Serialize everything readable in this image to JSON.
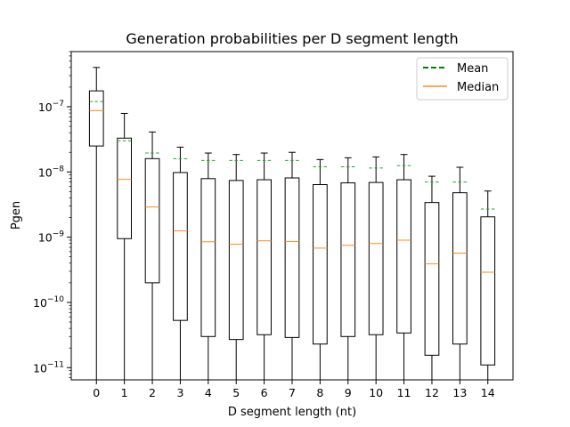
{
  "chart_data": {
    "type": "box",
    "title": "Generation probabilities per D segment length",
    "xlabel": "D segment length (nt)",
    "ylabel": "Pgen",
    "yscale": "log",
    "ylim": [
      6.5e-12,
      7e-07
    ],
    "categories": [
      "0",
      "1",
      "2",
      "3",
      "4",
      "5",
      "6",
      "7",
      "8",
      "9",
      "10",
      "11",
      "12",
      "13",
      "14"
    ],
    "y_ticks": [
      {
        "value": 1e-11,
        "base": "10",
        "exp": "−11"
      },
      {
        "value": 1e-10,
        "base": "10",
        "exp": "−10"
      },
      {
        "value": 1e-09,
        "base": "10",
        "exp": "−9"
      },
      {
        "value": 1e-08,
        "base": "10",
        "exp": "−8"
      },
      {
        "value": 1e-07,
        "base": "10",
        "exp": "−7"
      }
    ],
    "boxes": [
      {
        "x": "0",
        "whisker_low": 6.5e-12,
        "q1": 2.5e-08,
        "median": 8.7e-08,
        "q3": 1.75e-07,
        "whisker_high": 4e-07,
        "mean": 1.2e-07
      },
      {
        "x": "1",
        "whisker_low": 6.5e-12,
        "q1": 9.5e-10,
        "median": 7.7e-09,
        "q3": 3.3e-08,
        "whisker_high": 7.9e-08,
        "mean": 3e-08
      },
      {
        "x": "2",
        "whisker_low": 6.5e-12,
        "q1": 2e-10,
        "median": 2.9e-09,
        "q3": 1.6e-08,
        "whisker_high": 4.1e-08,
        "mean": 1.95e-08
      },
      {
        "x": "3",
        "whisker_low": 6.5e-12,
        "q1": 5.3e-11,
        "median": 1.25e-09,
        "q3": 9.8e-09,
        "whisker_high": 2.4e-08,
        "mean": 1.6e-08
      },
      {
        "x": "4",
        "whisker_low": 6.5e-12,
        "q1": 3e-11,
        "median": 8.5e-10,
        "q3": 7.9e-09,
        "whisker_high": 1.95e-08,
        "mean": 1.5e-08
      },
      {
        "x": "5",
        "whisker_low": 6.5e-12,
        "q1": 2.7e-11,
        "median": 7.8e-10,
        "q3": 7.4e-09,
        "whisker_high": 1.85e-08,
        "mean": 1.5e-08
      },
      {
        "x": "6",
        "whisker_low": 6.5e-12,
        "q1": 3.2e-11,
        "median": 8.8e-10,
        "q3": 7.6e-09,
        "whisker_high": 1.95e-08,
        "mean": 1.5e-08
      },
      {
        "x": "7",
        "whisker_low": 6.5e-12,
        "q1": 2.9e-11,
        "median": 8.6e-10,
        "q3": 8.1e-09,
        "whisker_high": 2e-08,
        "mean": 1.5e-08
      },
      {
        "x": "8",
        "whisker_low": 6.5e-12,
        "q1": 2.3e-11,
        "median": 6.8e-10,
        "q3": 6.4e-09,
        "whisker_high": 1.55e-08,
        "mean": 1.2e-08
      },
      {
        "x": "9",
        "whisker_low": 6.5e-12,
        "q1": 3e-11,
        "median": 7.5e-10,
        "q3": 6.8e-09,
        "whisker_high": 1.65e-08,
        "mean": 1.2e-08
      },
      {
        "x": "10",
        "whisker_low": 6.5e-12,
        "q1": 3.2e-11,
        "median": 8e-10,
        "q3": 6.9e-09,
        "whisker_high": 1.7e-08,
        "mean": 1.15e-08
      },
      {
        "x": "11",
        "whisker_low": 6.5e-12,
        "q1": 3.4e-11,
        "median": 9e-10,
        "q3": 7.6e-09,
        "whisker_high": 1.85e-08,
        "mean": 1.25e-08
      },
      {
        "x": "12",
        "whisker_low": 6.5e-12,
        "q1": 1.55e-11,
        "median": 3.9e-10,
        "q3": 3.4e-09,
        "whisker_high": 8.6e-09,
        "mean": 7e-09
      },
      {
        "x": "13",
        "whisker_low": 6.5e-12,
        "q1": 2.3e-11,
        "median": 5.7e-10,
        "q3": 4.8e-09,
        "whisker_high": 1.18e-08,
        "mean": 7e-09
      },
      {
        "x": "14",
        "whisker_low": 6.5e-12,
        "q1": 1.1e-11,
        "median": 2.9e-10,
        "q3": 2.05e-09,
        "whisker_high": 5.1e-09,
        "mean": 2.7e-09
      }
    ],
    "legend": {
      "position": "top-right",
      "entries": [
        {
          "label": "Mean",
          "style": "dashed",
          "color": "#008000"
        },
        {
          "label": "Median",
          "style": "solid",
          "color": "#ff8c1a"
        }
      ]
    },
    "colors": {
      "box_edge": "#000000",
      "median": "#ff8c1a",
      "mean_marker": "#2ca02c",
      "legend_mean": "#008000"
    },
    "grid": false
  }
}
